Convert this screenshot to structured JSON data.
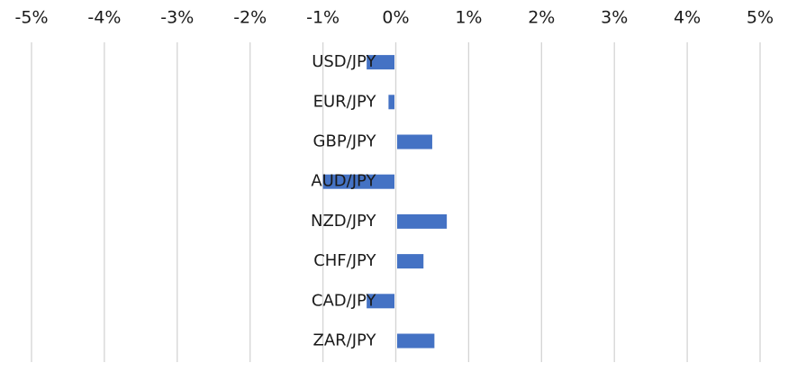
{
  "chart_data": {
    "type": "bar",
    "orientation": "horizontal",
    "title": "",
    "xlabel": "",
    "ylabel": "",
    "categories": [
      "USD/JPY",
      "EUR/JPY",
      "GBP/JPY",
      "AUD/JPY",
      "NZD/JPY",
      "CHF/JPY",
      "CAD/JPY",
      "ZAR/JPY"
    ],
    "series": [
      {
        "values": [
          -0.4,
          -0.1,
          0.5,
          -1.0,
          0.7,
          0.38,
          -0.4,
          0.53
        ]
      }
    ],
    "xlim": [
      -5,
      5
    ],
    "x_ticks": [
      -5,
      -4,
      -3,
      -2,
      -1,
      0,
      1,
      2,
      3,
      4,
      5
    ],
    "x_tick_labels": [
      "-5%",
      "-4%",
      "-3%",
      "-2%",
      "-1%",
      "0%",
      "1%",
      "2%",
      "3%",
      "4%",
      "5%"
    ],
    "tick_position": "top",
    "grid": true,
    "legend": "none",
    "bar_color": "#4472C4"
  }
}
